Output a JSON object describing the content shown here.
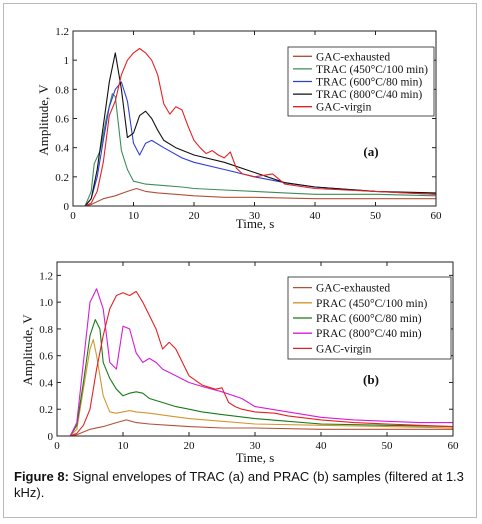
{
  "caption": {
    "label": "Figure 8:",
    "text": " Signal envelopes of TRAC (a) and PRAC (b) samples (filtered at 1.3 kHz)."
  },
  "chart_data": [
    {
      "type": "line",
      "panel_label": "(a)",
      "xlabel": "Time, s",
      "ylabel": "Amplitude, V",
      "xlim": [
        0,
        60
      ],
      "ylim": [
        0,
        1.2
      ],
      "xticks": [
        0,
        10,
        20,
        30,
        40,
        50,
        60
      ],
      "yticks": [
        0,
        0.2,
        0.4,
        0.6,
        0.8,
        1.0,
        1.2
      ],
      "ytick_labels": [
        "0",
        "0.2",
        "0.4",
        "0.6",
        "0.8",
        "1",
        "1.2"
      ],
      "legend_position": "top-right",
      "series": [
        {
          "name": "GAC-exhausted",
          "color": "#b0523a",
          "x": [
            0,
            2,
            3,
            4,
            5,
            7,
            9,
            10.5,
            12,
            14,
            17,
            20,
            25,
            30,
            40,
            50,
            60
          ],
          "y": [
            0,
            0,
            0.01,
            0.03,
            0.05,
            0.07,
            0.1,
            0.12,
            0.1,
            0.09,
            0.08,
            0.07,
            0.06,
            0.06,
            0.05,
            0.05,
            0.05
          ]
        },
        {
          "name": "TRAC (450°C/100 min)",
          "color": "#3e8c5a",
          "x": [
            0,
            2,
            3,
            3.5,
            4.5,
            5.5,
            6.5,
            7,
            8,
            9,
            10,
            12,
            15,
            18,
            20,
            25,
            30,
            35,
            40,
            50,
            60
          ],
          "y": [
            0,
            0,
            0.1,
            0.29,
            0.38,
            0.6,
            0.77,
            0.75,
            0.38,
            0.25,
            0.17,
            0.15,
            0.14,
            0.13,
            0.12,
            0.11,
            0.1,
            0.09,
            0.08,
            0.08,
            0.07
          ]
        },
        {
          "name": "TRAC (600°C/80 min)",
          "color": "#2f3fd6",
          "x": [
            0,
            2,
            3,
            4,
            5,
            6,
            7,
            8,
            9,
            10,
            11,
            12,
            13,
            15,
            18,
            20,
            25,
            30,
            35,
            40,
            50,
            60
          ],
          "y": [
            0,
            0,
            0.05,
            0.2,
            0.45,
            0.68,
            0.8,
            0.85,
            0.72,
            0.43,
            0.35,
            0.43,
            0.45,
            0.4,
            0.33,
            0.3,
            0.25,
            0.2,
            0.16,
            0.13,
            0.1,
            0.08
          ]
        },
        {
          "name": "TRAC (800°C/40 min)",
          "color": "#111111",
          "x": [
            0,
            2,
            3,
            4,
            5,
            6,
            7,
            8,
            9,
            10,
            11,
            12,
            13,
            14,
            15,
            17,
            20,
            25,
            30,
            35,
            40,
            50,
            60
          ],
          "y": [
            0,
            0,
            0.05,
            0.25,
            0.55,
            0.85,
            1.05,
            0.8,
            0.47,
            0.5,
            0.62,
            0.65,
            0.6,
            0.52,
            0.45,
            0.4,
            0.35,
            0.3,
            0.23,
            0.16,
            0.13,
            0.1,
            0.09
          ]
        },
        {
          "name": "GAC-virgin",
          "color": "#e52222",
          "x": [
            0,
            2,
            3,
            4,
            5,
            6,
            7,
            8,
            9,
            10,
            11,
            12,
            13,
            14,
            15,
            16,
            17,
            18,
            19,
            20,
            21,
            22,
            23,
            24,
            25,
            26,
            27,
            28,
            30,
            33,
            35,
            40,
            45,
            50,
            55,
            60
          ],
          "y": [
            0,
            0,
            0.02,
            0.1,
            0.3,
            0.62,
            0.72,
            0.9,
            1.0,
            1.05,
            1.08,
            1.05,
            1.0,
            0.9,
            0.7,
            0.63,
            0.68,
            0.66,
            0.55,
            0.45,
            0.4,
            0.36,
            0.38,
            0.35,
            0.33,
            0.37,
            0.26,
            0.22,
            0.2,
            0.22,
            0.15,
            0.12,
            0.11,
            0.1,
            0.09,
            0.08
          ]
        }
      ]
    },
    {
      "type": "line",
      "panel_label": "(b)",
      "xlabel": "Time, s",
      "ylabel": "Amplitude, V",
      "xlim": [
        0,
        60
      ],
      "ylim": [
        0,
        1.3
      ],
      "xticks": [
        0,
        10,
        20,
        30,
        40,
        50,
        60
      ],
      "yticks": [
        0,
        0.2,
        0.4,
        0.6,
        0.8,
        1.0,
        1.2
      ],
      "ytick_labels": [
        "0",
        "0.2",
        "0.4",
        "0.6",
        "0.8",
        "1.0",
        "1.2"
      ],
      "legend_position": "top-right",
      "series": [
        {
          "name": "GAC-exhausted",
          "color": "#b0523a",
          "x": [
            0,
            2,
            3,
            4,
            5,
            7,
            9,
            10.5,
            12,
            14,
            17,
            20,
            25,
            30,
            40,
            50,
            60
          ],
          "y": [
            0,
            0,
            0.01,
            0.03,
            0.05,
            0.07,
            0.1,
            0.12,
            0.1,
            0.09,
            0.08,
            0.07,
            0.06,
            0.06,
            0.05,
            0.05,
            0.05
          ]
        },
        {
          "name": "PRAC (450°C/100 min)",
          "color": "#d4962e",
          "x": [
            0,
            2,
            3,
            4,
            5,
            5.5,
            6,
            7,
            8,
            9,
            10,
            11,
            12,
            14,
            17,
            20,
            25,
            30,
            40,
            50,
            60
          ],
          "y": [
            0,
            0,
            0.05,
            0.35,
            0.65,
            0.72,
            0.6,
            0.3,
            0.18,
            0.17,
            0.18,
            0.19,
            0.18,
            0.17,
            0.15,
            0.13,
            0.11,
            0.09,
            0.08,
            0.07,
            0.06
          ]
        },
        {
          "name": "PRAC (600°C/80 min)",
          "color": "#1b7a1b",
          "x": [
            0,
            2,
            3,
            4,
            5,
            5.8,
            6.5,
            7,
            8,
            9,
            10,
            11,
            12,
            13,
            14,
            16,
            18,
            20,
            22,
            25,
            30,
            35,
            40,
            50,
            60
          ],
          "y": [
            0,
            0,
            0.08,
            0.4,
            0.75,
            0.87,
            0.8,
            0.55,
            0.43,
            0.35,
            0.3,
            0.32,
            0.33,
            0.32,
            0.28,
            0.25,
            0.22,
            0.2,
            0.18,
            0.16,
            0.13,
            0.11,
            0.09,
            0.08,
            0.07
          ]
        },
        {
          "name": "PRAC (800°C/40 min)",
          "color": "#d41fd4",
          "x": [
            0,
            2,
            3,
            4,
            5,
            6,
            7,
            8,
            9,
            10,
            11,
            12,
            13,
            14,
            15,
            16,
            18,
            20,
            22,
            25,
            28,
            30,
            35,
            40,
            45,
            50,
            55,
            60
          ],
          "y": [
            0,
            0,
            0.1,
            0.55,
            1.0,
            1.1,
            0.95,
            0.55,
            0.5,
            0.82,
            0.8,
            0.62,
            0.55,
            0.58,
            0.55,
            0.5,
            0.45,
            0.4,
            0.37,
            0.33,
            0.28,
            0.22,
            0.18,
            0.14,
            0.12,
            0.11,
            0.1,
            0.1
          ]
        },
        {
          "name": "GAC-virgin",
          "color": "#e52222",
          "x": [
            0,
            2,
            3,
            4,
            5,
            6,
            7,
            8,
            9,
            10,
            11,
            12,
            13,
            14,
            15,
            16,
            17,
            18,
            20,
            22,
            24,
            25,
            26,
            27,
            28,
            30,
            33,
            35,
            40,
            45,
            50,
            55,
            60
          ],
          "y": [
            0,
            0,
            0.02,
            0.08,
            0.2,
            0.5,
            0.75,
            0.95,
            1.05,
            1.07,
            1.05,
            1.08,
            1.0,
            0.9,
            0.8,
            0.65,
            0.7,
            0.65,
            0.45,
            0.38,
            0.35,
            0.36,
            0.25,
            0.22,
            0.2,
            0.18,
            0.17,
            0.15,
            0.12,
            0.1,
            0.09,
            0.08,
            0.07
          ]
        }
      ]
    }
  ]
}
